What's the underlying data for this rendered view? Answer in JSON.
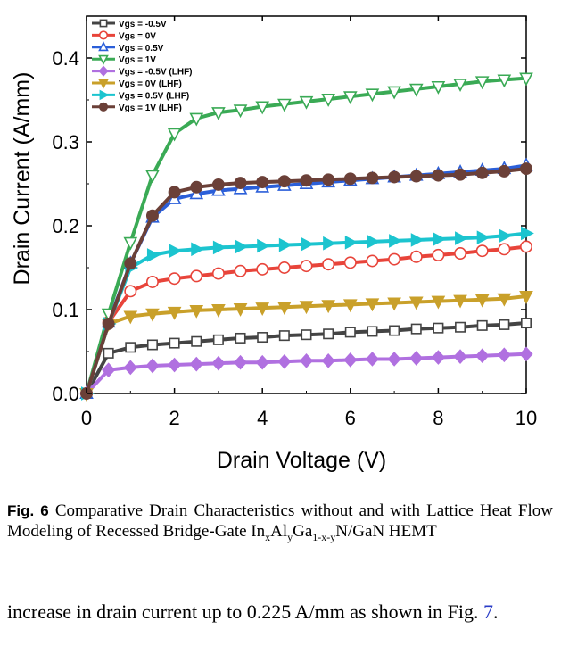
{
  "chart_data": {
    "type": "line",
    "xlabel": "Drain Voltage (V)",
    "ylabel": "Drain Current (A/mm)",
    "xlim": [
      0,
      10
    ],
    "ylim": [
      0,
      0.45
    ],
    "xticks": [
      "0",
      "2",
      "4",
      "6",
      "8",
      "10"
    ],
    "yticks": [
      "0.0",
      "0.1",
      "0.2",
      "0.3",
      "0.4"
    ],
    "grid": false,
    "legend_position": "top-left",
    "x": [
      0,
      0.5,
      1,
      1.5,
      2,
      2.5,
      3,
      3.5,
      4,
      4.5,
      5,
      5.5,
      6,
      6.5,
      7,
      7.5,
      8,
      8.5,
      9,
      9.5,
      10
    ],
    "series": [
      {
        "name": "Vgs = -0.5V",
        "color": "#444444",
        "marker": "square",
        "filled": false,
        "values": [
          0,
          0.048,
          0.055,
          0.058,
          0.06,
          0.062,
          0.064,
          0.066,
          0.067,
          0.069,
          0.07,
          0.071,
          0.073,
          0.074,
          0.075,
          0.077,
          0.078,
          0.079,
          0.081,
          0.082,
          0.084
        ]
      },
      {
        "name": "Vgs = 0V",
        "color": "#e8443a",
        "marker": "circle",
        "filled": false,
        "values": [
          0,
          0.085,
          0.122,
          0.133,
          0.137,
          0.14,
          0.143,
          0.146,
          0.148,
          0.15,
          0.152,
          0.154,
          0.156,
          0.158,
          0.16,
          0.163,
          0.165,
          0.167,
          0.17,
          0.172,
          0.175
        ]
      },
      {
        "name": "Vgs = 0.5V",
        "color": "#2b5fd9",
        "marker": "triangle-up",
        "filled": false,
        "values": [
          0,
          0.085,
          0.155,
          0.21,
          0.232,
          0.238,
          0.242,
          0.244,
          0.246,
          0.248,
          0.25,
          0.252,
          0.254,
          0.256,
          0.258,
          0.26,
          0.262,
          0.264,
          0.266,
          0.268,
          0.272
        ]
      },
      {
        "name": "Vgs = 1V",
        "color": "#3aaa55",
        "marker": "triangle-down",
        "filled": false,
        "values": [
          0,
          0.095,
          0.18,
          0.26,
          0.31,
          0.328,
          0.335,
          0.338,
          0.342,
          0.345,
          0.348,
          0.351,
          0.354,
          0.357,
          0.36,
          0.363,
          0.366,
          0.369,
          0.372,
          0.374,
          0.376
        ]
      },
      {
        "name": "Vgs = -0.5V (LHF)",
        "color": "#b070e0",
        "marker": "diamond",
        "filled": true,
        "values": [
          0,
          0.028,
          0.031,
          0.033,
          0.034,
          0.035,
          0.036,
          0.037,
          0.037,
          0.038,
          0.039,
          0.039,
          0.04,
          0.041,
          0.041,
          0.042,
          0.043,
          0.044,
          0.045,
          0.046,
          0.047
        ]
      },
      {
        "name": "Vgs = 0V (LHF)",
        "color": "#c9a02a",
        "marker": "triangle-down",
        "filled": true,
        "values": [
          0,
          0.083,
          0.092,
          0.095,
          0.097,
          0.099,
          0.1,
          0.101,
          0.102,
          0.103,
          0.104,
          0.105,
          0.106,
          0.107,
          0.108,
          0.109,
          0.11,
          0.111,
          0.112,
          0.113,
          0.116
        ]
      },
      {
        "name": "Vgs = 0.5V (LHF)",
        "color": "#1cc4cf",
        "marker": "triangle-right",
        "filled": true,
        "values": [
          0,
          0.083,
          0.15,
          0.165,
          0.17,
          0.172,
          0.174,
          0.175,
          0.176,
          0.177,
          0.178,
          0.179,
          0.18,
          0.181,
          0.182,
          0.183,
          0.184,
          0.185,
          0.186,
          0.188,
          0.191
        ]
      },
      {
        "name": "Vgs = 1V (LHF)",
        "color": "#6b4038",
        "marker": "circle",
        "filled": true,
        "values": [
          0,
          0.083,
          0.155,
          0.212,
          0.24,
          0.246,
          0.249,
          0.251,
          0.252,
          0.253,
          0.254,
          0.255,
          0.256,
          0.257,
          0.258,
          0.259,
          0.26,
          0.261,
          0.263,
          0.265,
          0.268
        ]
      }
    ]
  },
  "caption": {
    "fig_label": "Fig. 6",
    "text_before": "Comparative Drain Characteristics without and with Lattice Heat Flow Modeling of Recessed Bridge-Gate In",
    "sub_x": "x",
    "al": "Al",
    "sub_y": "y",
    "ga": "Ga",
    "sub_1xy": "1-x-y",
    "text_after": "N/GaN HEMT"
  },
  "body": {
    "text": "increase in drain current up to 0.225 A/mm as shown in Fig. ",
    "link": "7",
    "tail": "."
  }
}
